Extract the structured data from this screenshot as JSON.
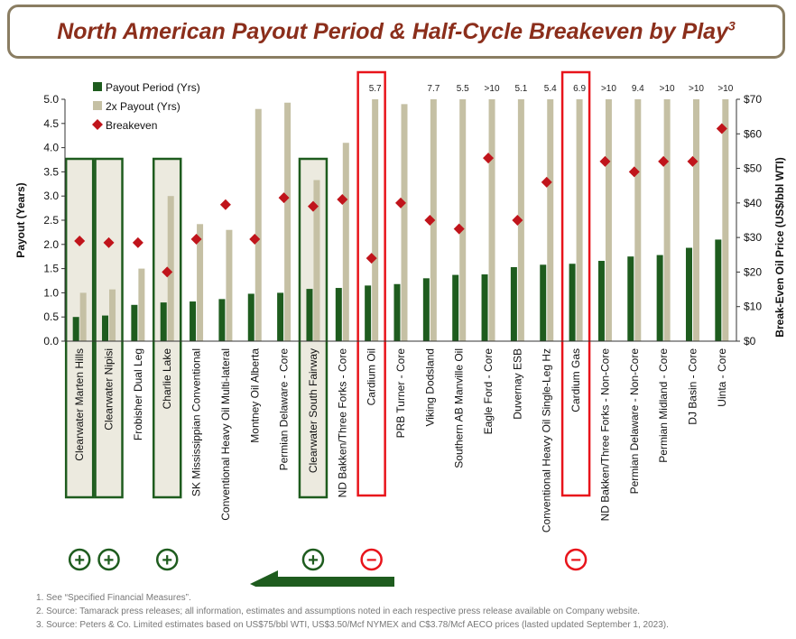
{
  "title": {
    "text": "North American Payout Period & Half-Cycle Breakeven by Play",
    "superscript": "3"
  },
  "chart_data": {
    "type": "bar",
    "categories": [
      "Clearwater Marten Hills",
      "Clearwater Nipisi",
      "Frobisher Dual Leg",
      "Charlie Lake",
      "SK Mississippian Conventional",
      "Conventional Heavy Oil Multi-lateral",
      "Montney Oil Alberta",
      "Permian Delaware - Core",
      "Clearwater South Fairway",
      "ND Bakken/Three Forks - Core",
      "Cardium Oil",
      "PRB Turner - Core",
      "Viking Dodsland",
      "Southern AB Manville Oil",
      "Eagle Ford - Core",
      "Duvernay ESB",
      "Conventional Heavy Oil Single-Leg Hz",
      "Cardium Gas",
      "ND Bakken/Three Forks - Non-Core",
      "Permian Delaware - Non-Core",
      "Permian Midland - Core",
      "DJ Basin - Core",
      "Uinta - Core"
    ],
    "series": [
      {
        "name": "Payout Period (Yrs)",
        "color": "#1e5c1e",
        "axis": "left",
        "values": [
          0.5,
          0.53,
          0.75,
          0.8,
          0.82,
          0.87,
          0.98,
          1.0,
          1.08,
          1.1,
          1.15,
          1.18,
          1.3,
          1.37,
          1.38,
          1.53,
          1.58,
          1.6,
          1.66,
          1.75,
          1.78,
          1.93,
          2.1
        ]
      },
      {
        "name": "2x Payout (Yrs)",
        "color": "#c5c0a4",
        "axis": "left",
        "values": [
          1.0,
          1.07,
          1.5,
          3.0,
          2.42,
          2.3,
          4.8,
          4.93,
          3.33,
          4.1,
          5.0,
          4.9,
          5.0,
          5.0,
          5.0,
          5.0,
          5.0,
          5.0,
          5.0,
          5.0,
          5.0,
          5.0,
          5.0
        ]
      },
      {
        "name": "Breakeven",
        "color": "#c0141b",
        "axis": "right",
        "values": [
          29,
          28.5,
          28.5,
          20,
          29.5,
          39.5,
          29.5,
          41.5,
          39,
          41,
          24,
          40,
          35,
          32.5,
          53,
          35,
          46,
          null,
          52,
          49,
          52,
          52,
          61.5
        ]
      }
    ],
    "bar_overflow_labels": [
      "",
      "",
      "",
      "",
      "",
      "",
      "",
      "",
      "",
      "",
      "5.7",
      "",
      "7.7",
      "5.5",
      ">10",
      "5.1",
      "5.4",
      "6.9",
      ">10",
      "9.4",
      ">10",
      ">10",
      ">10"
    ],
    "ylabel": "Payout (Years)",
    "ylim": [
      0,
      5
    ],
    "yticks": [
      "0.0",
      "0.5",
      "1.0",
      "1.5",
      "2.0",
      "2.5",
      "3.0",
      "3.5",
      "4.0",
      "4.5",
      "5.0"
    ],
    "y2label": "Break-Even Oil Price (US$/bbl WTI)",
    "y2lim": [
      0,
      70
    ],
    "y2ticks": [
      "$0",
      "$10",
      "$20",
      "$30",
      "$40",
      "$50",
      "$60",
      "$70"
    ],
    "legend": [
      "Payout Period (Yrs)",
      "2x Payout (Yrs)",
      "Breakeven"
    ],
    "green_highlights": [
      0,
      1,
      3,
      8
    ],
    "red_highlights": [
      10,
      17
    ],
    "plus_markers": [
      0,
      1,
      3,
      8
    ],
    "minus_markers": [
      10,
      17
    ],
    "plus_symbol": "+",
    "minus_symbol": "−"
  },
  "footnotes": [
    "1.  See “Specified Financial Measures”.",
    "2.  Source: Tamarack press releases; all information, estimates and assumptions noted in each respective press release available on Company website.",
    "3.  Source: Peters & Co. Limited estimates based on US$75/bbl WTI, US$3.50/Mcf NYMEX and C$3.78/Mcf AECO prices (lasted updated September 1, 2023)."
  ]
}
